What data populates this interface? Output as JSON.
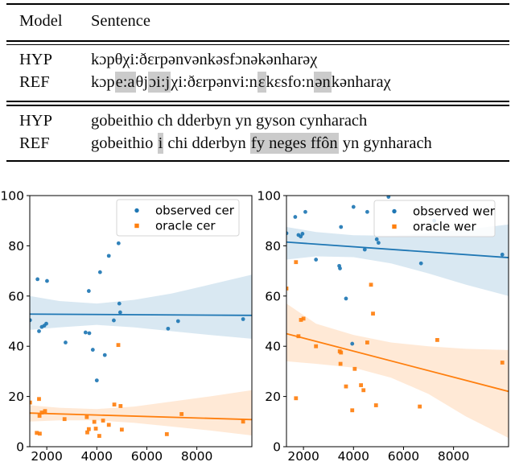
{
  "table": {
    "headers": {
      "model": "Model",
      "sentence": "Sentence"
    },
    "highlight_color": "#cbcbcb",
    "groups": [
      {
        "rows": [
          {
            "model": "HYP",
            "segments": [
              {
                "t": "kɔpθχi:ðɛrpənvənkəsfɔnəkənharəχ",
                "h": false
              }
            ]
          },
          {
            "model": "REF",
            "segments": [
              {
                "t": "kɔp",
                "h": false
              },
              {
                "t": "e:a",
                "h": true
              },
              {
                "t": "θj",
                "h": false
              },
              {
                "t": "ɔi:j",
                "h": true
              },
              {
                "t": "χi:ðɛrpənvi:n",
                "h": false
              },
              {
                "t": "ɛ",
                "h": true
              },
              {
                "t": "kɛsfo:n",
                "h": false
              },
              {
                "t": "ən",
                "h": true
              },
              {
                "t": "kənharaχ",
                "h": false
              }
            ]
          }
        ]
      },
      {
        "rows": [
          {
            "model": "HYP",
            "segments": [
              {
                "t": "gobeithio ch dderbyn yn gyson cynharach",
                "h": false
              }
            ]
          },
          {
            "model": "REF",
            "segments": [
              {
                "t": "gobeithio ",
                "h": false
              },
              {
                "t": "i",
                "h": true
              },
              {
                "t": " chi dderbyn ",
                "h": false
              },
              {
                "t": "fy neges ffôn",
                "h": true
              },
              {
                "t": " yn gynharach",
                "h": false
              }
            ]
          }
        ]
      }
    ]
  },
  "chart_data": [
    {
      "type": "scatter",
      "title": "",
      "xlabel": "",
      "ylabel": "",
      "xlim": [
        1320,
        10200
      ],
      "ylim": [
        0,
        100
      ],
      "xticks": [
        2000,
        4000,
        6000,
        8000
      ],
      "yticks": [
        0,
        20,
        40,
        60,
        80,
        100
      ],
      "grid": false,
      "legend_position": "upper right",
      "series": [
        {
          "name": "observed cer",
          "marker": "circle",
          "color": "#1f77b4",
          "points": [
            [
              1330,
              50.4
            ],
            [
              1630,
              66.7
            ],
            [
              1690,
              46
            ],
            [
              1800,
              47.7
            ],
            [
              1900,
              48.2
            ],
            [
              1980,
              49
            ],
            [
              2010,
              66
            ],
            [
              2750,
              41.5
            ],
            [
              3550,
              45.5
            ],
            [
              3680,
              62
            ],
            [
              3700,
              45.2
            ],
            [
              3840,
              38.6
            ],
            [
              4000,
              26.4
            ],
            [
              4130,
              69.5
            ],
            [
              4320,
              36.5
            ],
            [
              4480,
              76
            ],
            [
              4680,
              50.3
            ],
            [
              4870,
              81
            ],
            [
              4900,
              57
            ],
            [
              4935,
              53.5
            ],
            [
              6850,
              47
            ],
            [
              7250,
              50
            ],
            [
              9850,
              50.8
            ]
          ],
          "trend": {
            "x": [
              1320,
              10200
            ],
            "y": [
              52.8,
              52.3
            ]
          },
          "band": {
            "x": [
              1320,
              2500,
              4000,
              5500,
              7000,
              8500,
              10200
            ],
            "upper": [
              60,
              58,
              57,
              58.5,
              61,
              64.5,
              68.5
            ],
            "lower": [
              46.5,
              47.5,
              48.5,
              47.5,
              46,
              44.5,
              43
            ]
          }
        },
        {
          "name": "oracle cer",
          "marker": "square",
          "color": "#ff7f0e",
          "points": [
            [
              1330,
              17.6
            ],
            [
              1600,
              5.5
            ],
            [
              1690,
              19
            ],
            [
              1710,
              12.3
            ],
            [
              1720,
              5.2
            ],
            [
              1800,
              13.6
            ],
            [
              1930,
              14.2
            ],
            [
              2710,
              11
            ],
            [
              3600,
              11.8
            ],
            [
              3620,
              5.7
            ],
            [
              3680,
              7
            ],
            [
              3900,
              9.9
            ],
            [
              3960,
              7.2
            ],
            [
              4100,
              4.3
            ],
            [
              4250,
              10.4
            ],
            [
              4480,
              8.7
            ],
            [
              4700,
              16.8
            ],
            [
              4860,
              40.5
            ],
            [
              4950,
              16.2
            ],
            [
              5000,
              6.8
            ],
            [
              6800,
              5
            ],
            [
              7390,
              13
            ],
            [
              9850,
              10
            ]
          ],
          "trend": {
            "x": [
              1320,
              10200
            ],
            "y": [
              13.4,
              10.8
            ]
          },
          "band": {
            "x": [
              1320,
              2500,
              4000,
              5500,
              7000,
              8500,
              10200
            ],
            "upper": [
              16.5,
              15.5,
              15,
              16,
              18,
              20,
              22.5
            ],
            "lower": [
              10,
              10.5,
              10.5,
              9.5,
              8,
              6.5,
              4.5
            ]
          }
        }
      ]
    },
    {
      "type": "scatter",
      "title": "",
      "xlabel": "",
      "ylabel": "",
      "xlim": [
        1320,
        10200
      ],
      "ylim": [
        0,
        100
      ],
      "xticks": [
        2000,
        4000,
        6000,
        8000
      ],
      "yticks": [
        0,
        20,
        40,
        60,
        80,
        100
      ],
      "grid": false,
      "legend_position": "upper right",
      "series": [
        {
          "name": "observed wer",
          "marker": "circle",
          "color": "#1f77b4",
          "points": [
            [
              1320,
              85
            ],
            [
              1670,
              91.5
            ],
            [
              1800,
              84.3
            ],
            [
              1890,
              83.7
            ],
            [
              1960,
              84.8
            ],
            [
              2075,
              93.5
            ],
            [
              2500,
              74.5
            ],
            [
              3430,
              72
            ],
            [
              3460,
              71
            ],
            [
              3500,
              87.5
            ],
            [
              3700,
              59
            ],
            [
              3950,
              41
            ],
            [
              4000,
              95.5
            ],
            [
              4450,
              78.5
            ],
            [
              4550,
              93.5
            ],
            [
              4930,
              82.6
            ],
            [
              5000,
              81.2
            ],
            [
              5400,
              99.5
            ],
            [
              6700,
              73
            ],
            [
              7230,
              90
            ],
            [
              9950,
              76.5
            ]
          ],
          "trend": {
            "x": [
              1320,
              10200
            ],
            "y": [
              81.5,
              75.3
            ]
          },
          "band": {
            "x": [
              1320,
              2500,
              4000,
              5500,
              7000,
              8500,
              10200
            ],
            "upper": [
              87.5,
              85.5,
              84.2,
              84,
              85,
              86.5,
              88.5
            ],
            "lower": [
              74.5,
              75.8,
              75.5,
              73,
              69,
              64.5,
              60
            ]
          }
        },
        {
          "name": "oracle wer",
          "marker": "square",
          "color": "#ff7f0e",
          "points": [
            [
              1320,
              63
            ],
            [
              1700,
              73.5
            ],
            [
              1700,
              19.3
            ],
            [
              1800,
              44
            ],
            [
              1900,
              50.5
            ],
            [
              2000,
              51
            ],
            [
              2500,
              40
            ],
            [
              3450,
              38
            ],
            [
              3500,
              37.5
            ],
            [
              3480,
              33
            ],
            [
              3700,
              24
            ],
            [
              3950,
              14.5
            ],
            [
              4050,
              31
            ],
            [
              4300,
              24.5
            ],
            [
              4400,
              22.5
            ],
            [
              4550,
              41.5
            ],
            [
              4700,
              64.5
            ],
            [
              4780,
              53
            ],
            [
              4900,
              16.5
            ],
            [
              6650,
              16
            ],
            [
              7350,
              42.5
            ],
            [
              9950,
              33.5
            ]
          ],
          "trend": {
            "x": [
              1320,
              10200
            ],
            "y": [
              45,
              22
            ]
          },
          "band": {
            "x": [
              1320,
              2500,
              4000,
              5500,
              7000,
              8500,
              10200
            ],
            "upper": [
              57,
              49,
              44.5,
              41.5,
              40,
              39,
              38.5
            ],
            "lower": [
              34,
              33,
              31.5,
              27.5,
              21,
              12,
              3.5
            ]
          }
        }
      ]
    }
  ]
}
